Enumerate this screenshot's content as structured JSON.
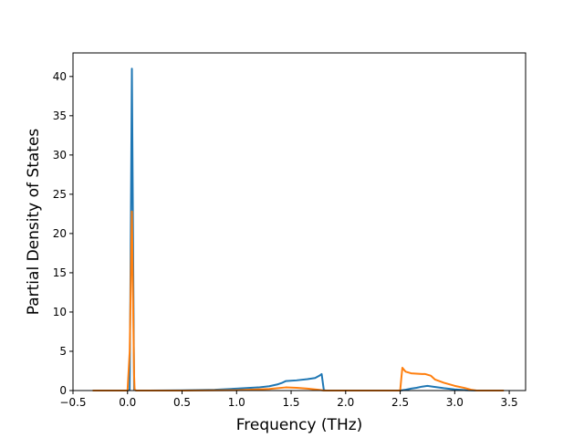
{
  "chart_data": {
    "type": "line",
    "title": "",
    "xlabel": "Frequency (THz)",
    "ylabel": "Partial Density of States",
    "xlim": [
      -0.5,
      3.65
    ],
    "ylim": [
      0,
      43
    ],
    "xticks": [
      -0.5,
      0.0,
      0.5,
      1.0,
      1.5,
      2.0,
      2.5,
      3.0,
      3.5
    ],
    "xtick_labels": [
      "−0.5",
      "0.0",
      "0.5",
      "1.0",
      "1.5",
      "2.0",
      "2.5",
      "3.0",
      "3.5"
    ],
    "yticks": [
      0,
      5,
      10,
      15,
      20,
      25,
      30,
      35,
      40
    ],
    "ytick_labels": [
      "0",
      "5",
      "10",
      "15",
      "20",
      "25",
      "30",
      "35",
      "40"
    ],
    "grid": false,
    "legend": "none",
    "series": [
      {
        "color": "#1f77b4",
        "x": [
          -0.32,
          0.0,
          0.02,
          0.04,
          0.06,
          0.08,
          0.2,
          0.5,
          0.8,
          1.0,
          1.2,
          1.3,
          1.38,
          1.42,
          1.45,
          1.55,
          1.65,
          1.72,
          1.76,
          1.78,
          1.8,
          1.82,
          2.0,
          2.2,
          2.5,
          2.55,
          2.6,
          2.65,
          2.7,
          2.75,
          2.8,
          2.9,
          3.0,
          3.1,
          3.2,
          3.45
        ],
        "y": [
          0,
          0,
          0.1,
          41.0,
          0.1,
          0,
          0,
          0.03,
          0.1,
          0.25,
          0.4,
          0.55,
          0.8,
          1.0,
          1.2,
          1.3,
          1.45,
          1.6,
          1.9,
          2.1,
          0.05,
          0,
          0,
          0,
          0,
          0.1,
          0.25,
          0.35,
          0.5,
          0.6,
          0.5,
          0.3,
          0.15,
          0.05,
          0,
          0
        ]
      },
      {
        "color": "#ff7f0e",
        "x": [
          -0.32,
          0.0,
          0.02,
          0.04,
          0.06,
          0.065,
          0.08,
          0.5,
          1.0,
          1.3,
          1.45,
          1.55,
          1.65,
          1.75,
          1.8,
          2.0,
          2.5,
          2.51,
          2.52,
          2.55,
          2.6,
          2.65,
          2.7,
          2.73,
          2.78,
          2.82,
          2.9,
          3.0,
          3.1,
          3.15,
          3.2,
          3.45
        ],
        "y": [
          0,
          0,
          5.0,
          22.8,
          2.0,
          0.1,
          0,
          0,
          0.05,
          0.2,
          0.4,
          0.35,
          0.25,
          0.1,
          0,
          0,
          0,
          1.5,
          2.9,
          2.4,
          2.2,
          2.15,
          2.1,
          2.1,
          1.9,
          1.4,
          1.0,
          0.6,
          0.3,
          0.1,
          0,
          0
        ]
      }
    ]
  }
}
